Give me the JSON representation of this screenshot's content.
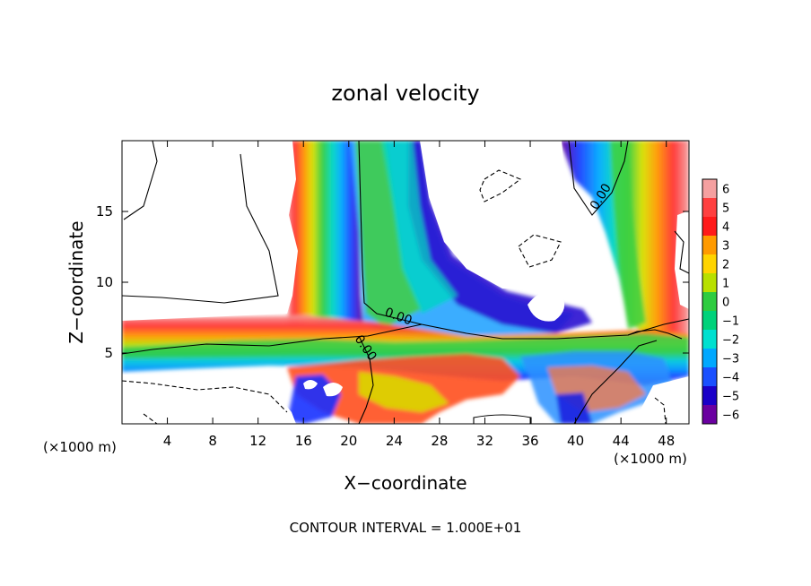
{
  "chart_data": {
    "type": "heatmap",
    "title": "zonal velocity",
    "xlabel": "X−coordinate",
    "ylabel": "Z−coordinate",
    "x_unit_left": "(×1000 m)",
    "x_unit_right": "(×1000 m)",
    "footer": "CONTOUR INTERVAL = 1.000E+01",
    "xlim": [
      0,
      50
    ],
    "ylim": [
      0,
      20
    ],
    "x_ticks": [
      "4",
      "8",
      "12",
      "16",
      "20",
      "24",
      "28",
      "32",
      "36",
      "40",
      "44",
      "48"
    ],
    "x_tick_values": [
      4,
      8,
      12,
      16,
      20,
      24,
      28,
      32,
      36,
      40,
      44,
      48
    ],
    "y_ticks": [
      "5",
      "10",
      "15"
    ],
    "y_tick_values": [
      5,
      10,
      15
    ],
    "colorbar": {
      "labels": [
        "6",
        "5",
        "4",
        "3",
        "2",
        "1",
        "0",
        "−1",
        "−2",
        "−3",
        "−4",
        "−5",
        "−6"
      ],
      "values": [
        6,
        5,
        4,
        3,
        2,
        1,
        0,
        -1,
        -2,
        -3,
        -4,
        -5,
        -6
      ],
      "colors": [
        "#f5a0a0",
        "#ff4040",
        "#ff1a1a",
        "#ff9a00",
        "#ffd400",
        "#b8e000",
        "#2ecc40",
        "#00d27a",
        "#00e0d0",
        "#00a8ff",
        "#1a50ff",
        "#1a00c8",
        "#6a00a0"
      ]
    },
    "contour_labels": [
      "0.00",
      "0.00",
      "0.00"
    ],
    "bands": [
      {
        "name": "left-vertical-jet",
        "x_center": [
          19,
          19,
          18.5,
          18.6,
          19.2,
          19.5
        ],
        "y": [
          20,
          15,
          10,
          7,
          5,
          0.2
        ],
        "width_km": 8.5
      },
      {
        "name": "right-vertical-jet",
        "x_center": [
          44,
          43.6,
          43.4,
          43.3,
          43.5,
          43.6
        ],
        "y": [
          20,
          15,
          10,
          7,
          5,
          0.2
        ],
        "width_km": 6
      },
      {
        "name": "low-level-jet",
        "x": [
          0,
          10,
          16,
          22,
          28,
          34,
          40,
          46,
          50
        ],
        "y_center": [
          5.8,
          6.0,
          6.2,
          5.5,
          5.3,
          5.0,
          5.0,
          4.8,
          4.5
        ],
        "thickness_km": 2.6
      }
    ]
  }
}
